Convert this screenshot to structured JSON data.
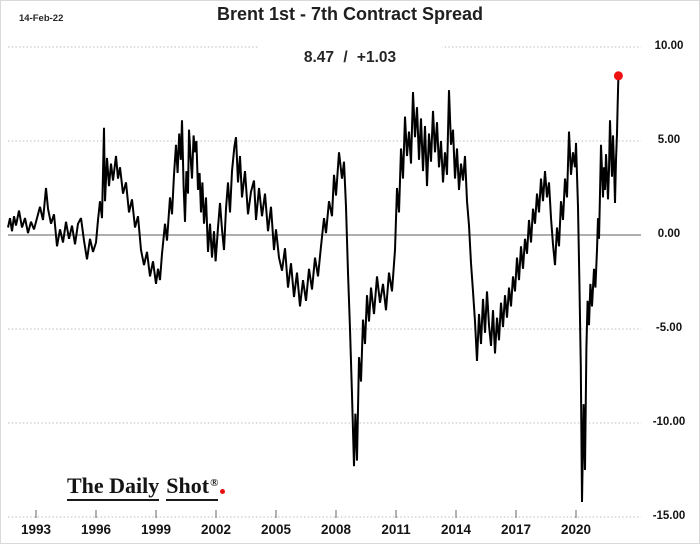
{
  "page": {
    "date_label": "14-Feb-22",
    "title": "Brent 1st - 7th Contract Spread",
    "subtitle": "8.47 / +1.03",
    "logo": {
      "word1": "The Daily",
      "word2": "Shot",
      "registered": "®"
    }
  },
  "chart_data": {
    "type": "line",
    "title": "Brent 1st - 7th Contract Spread",
    "as_of_date": "14-Feb-22",
    "latest_value": 8.47,
    "latest_change": "+1.03",
    "x_domain": [
      1991.6,
      2023.25
    ],
    "ylim": [
      -15,
      10
    ],
    "y_axis_side": "right",
    "grid": "dotted-horizontal",
    "y_ticks": [
      10,
      5,
      0,
      -5,
      -10,
      -15
    ],
    "y_tick_labels": [
      "10.00",
      "5.00",
      "0.00",
      "-5.00",
      "-10.00",
      "-15.00"
    ],
    "x_ticks": [
      1993,
      1996,
      1999,
      2002,
      2005,
      2008,
      2011,
      2014,
      2017,
      2020
    ],
    "x_tick_labels": [
      "1993",
      "1996",
      "1999",
      "2002",
      "2005",
      "2008",
      "2011",
      "2014",
      "2017",
      "2020"
    ],
    "colors": {
      "line": "#000000",
      "marker": "#ee1111",
      "grid": "#bdbdbd",
      "zero_line": "#7f7f7f",
      "tick": "#666666"
    },
    "marker": {
      "x": 2022.12,
      "y": 8.47
    },
    "series": [
      {
        "name": "Brent 1st - 7th contract spread",
        "points": [
          [
            1991.6,
            0.4
          ],
          [
            1991.7,
            0.9
          ],
          [
            1991.8,
            0.2
          ],
          [
            1991.9,
            1.0
          ],
          [
            1992.0,
            0.5
          ],
          [
            1992.15,
            1.3
          ],
          [
            1992.3,
            0.4
          ],
          [
            1992.45,
            0.9
          ],
          [
            1992.6,
            0.1
          ],
          [
            1992.75,
            0.7
          ],
          [
            1992.9,
            0.3
          ],
          [
            1993.05,
            0.9
          ],
          [
            1993.2,
            1.5
          ],
          [
            1993.35,
            0.8
          ],
          [
            1993.5,
            2.5
          ],
          [
            1993.6,
            1.4
          ],
          [
            1993.75,
            0.6
          ],
          [
            1993.9,
            1.1
          ],
          [
            1994.05,
            -0.6
          ],
          [
            1994.2,
            0.3
          ],
          [
            1994.35,
            -0.4
          ],
          [
            1994.5,
            0.7
          ],
          [
            1994.65,
            -0.2
          ],
          [
            1994.8,
            0.5
          ],
          [
            1994.95,
            -0.5
          ],
          [
            1995.1,
            0.6
          ],
          [
            1995.25,
            0.9
          ],
          [
            1995.4,
            -0.3
          ],
          [
            1995.55,
            -1.3
          ],
          [
            1995.7,
            -0.2
          ],
          [
            1995.85,
            -0.9
          ],
          [
            1996.0,
            -0.4
          ],
          [
            1996.1,
            0.8
          ],
          [
            1996.2,
            1.8
          ],
          [
            1996.3,
            0.9
          ],
          [
            1996.4,
            5.7
          ],
          [
            1996.45,
            1.8
          ],
          [
            1996.55,
            4.1
          ],
          [
            1996.65,
            2.6
          ],
          [
            1996.75,
            3.8
          ],
          [
            1996.85,
            2.9
          ],
          [
            1997.0,
            4.2
          ],
          [
            1997.1,
            3.0
          ],
          [
            1997.2,
            3.6
          ],
          [
            1997.35,
            2.2
          ],
          [
            1997.5,
            2.8
          ],
          [
            1997.65,
            1.2
          ],
          [
            1997.8,
            1.9
          ],
          [
            1997.95,
            0.4
          ],
          [
            1998.1,
            1.0
          ],
          [
            1998.25,
            -0.8
          ],
          [
            1998.4,
            -1.6
          ],
          [
            1998.55,
            -0.9
          ],
          [
            1998.7,
            -2.2
          ],
          [
            1998.85,
            -1.4
          ],
          [
            1999.0,
            -2.6
          ],
          [
            1999.1,
            -1.8
          ],
          [
            1999.2,
            -2.4
          ],
          [
            1999.3,
            -1.0
          ],
          [
            1999.45,
            0.6
          ],
          [
            1999.55,
            -0.3
          ],
          [
            1999.7,
            2.0
          ],
          [
            1999.8,
            1.1
          ],
          [
            1999.9,
            3.2
          ],
          [
            2000.0,
            4.8
          ],
          [
            2000.08,
            3.3
          ],
          [
            2000.16,
            5.4
          ],
          [
            2000.24,
            4.0
          ],
          [
            2000.3,
            6.1
          ],
          [
            2000.38,
            2.6
          ],
          [
            2000.45,
            0.7
          ],
          [
            2000.52,
            3.4
          ],
          [
            2000.6,
            2.2
          ],
          [
            2000.65,
            5.6
          ],
          [
            2000.72,
            4.3
          ],
          [
            2000.8,
            3.0
          ],
          [
            2000.88,
            5.3
          ],
          [
            2000.95,
            4.4
          ],
          [
            2001.02,
            5.0
          ],
          [
            2001.1,
            2.4
          ],
          [
            2001.18,
            3.3
          ],
          [
            2001.25,
            1.2
          ],
          [
            2001.32,
            2.8
          ],
          [
            2001.4,
            0.6
          ],
          [
            2001.5,
            2.0
          ],
          [
            2001.6,
            -0.9
          ],
          [
            2001.7,
            0.6
          ],
          [
            2001.8,
            -1.2
          ],
          [
            2001.9,
            0.2
          ],
          [
            2001.98,
            -1.4
          ],
          [
            2002.1,
            0.4
          ],
          [
            2002.2,
            1.7
          ],
          [
            2002.3,
            0.3
          ],
          [
            2002.4,
            -0.8
          ],
          [
            2002.5,
            1.4
          ],
          [
            2002.6,
            2.8
          ],
          [
            2002.7,
            1.2
          ],
          [
            2002.8,
            3.4
          ],
          [
            2002.92,
            4.7
          ],
          [
            2003.0,
            5.2
          ],
          [
            2003.1,
            2.8
          ],
          [
            2003.2,
            4.2
          ],
          [
            2003.3,
            2.0
          ],
          [
            2003.45,
            3.4
          ],
          [
            2003.6,
            1.1
          ],
          [
            2003.75,
            2.3
          ],
          [
            2003.9,
            2.9
          ],
          [
            2004.0,
            0.8
          ],
          [
            2004.15,
            2.5
          ],
          [
            2004.3,
            1.0
          ],
          [
            2004.45,
            2.2
          ],
          [
            2004.6,
            0.2
          ],
          [
            2004.75,
            1.5
          ],
          [
            2004.9,
            -0.8
          ],
          [
            2005.0,
            0.3
          ],
          [
            2005.15,
            -1.2
          ],
          [
            2005.3,
            -1.9
          ],
          [
            2005.45,
            -0.7
          ],
          [
            2005.6,
            -2.8
          ],
          [
            2005.75,
            -1.5
          ],
          [
            2005.9,
            -3.3
          ],
          [
            2006.05,
            -2.0
          ],
          [
            2006.2,
            -3.8
          ],
          [
            2006.35,
            -2.4
          ],
          [
            2006.5,
            -3.5
          ],
          [
            2006.65,
            -1.8
          ],
          [
            2006.8,
            -2.9
          ],
          [
            2006.95,
            -1.2
          ],
          [
            2007.1,
            -2.2
          ],
          [
            2007.25,
            -0.6
          ],
          [
            2007.4,
            0.9
          ],
          [
            2007.5,
            0.1
          ],
          [
            2007.65,
            1.8
          ],
          [
            2007.8,
            1.0
          ],
          [
            2007.9,
            3.2
          ],
          [
            2008.0,
            2.1
          ],
          [
            2008.15,
            4.4
          ],
          [
            2008.3,
            3.0
          ],
          [
            2008.4,
            3.9
          ],
          [
            2008.5,
            1.5
          ],
          [
            2008.6,
            -2.0
          ],
          [
            2008.7,
            -5.0
          ],
          [
            2008.8,
            -8.5
          ],
          [
            2008.9,
            -12.3
          ],
          [
            2008.97,
            -9.5
          ],
          [
            2009.05,
            -12.0
          ],
          [
            2009.15,
            -6.5
          ],
          [
            2009.25,
            -7.8
          ],
          [
            2009.35,
            -4.5
          ],
          [
            2009.45,
            -5.8
          ],
          [
            2009.55,
            -3.2
          ],
          [
            2009.65,
            -4.6
          ],
          [
            2009.75,
            -2.8
          ],
          [
            2009.9,
            -4.2
          ],
          [
            2010.05,
            -2.2
          ],
          [
            2010.2,
            -3.6
          ],
          [
            2010.35,
            -2.6
          ],
          [
            2010.5,
            -4.0
          ],
          [
            2010.65,
            -2.0
          ],
          [
            2010.8,
            -3.0
          ],
          [
            2010.95,
            -0.8
          ],
          [
            2011.05,
            2.5
          ],
          [
            2011.15,
            1.2
          ],
          [
            2011.25,
            4.6
          ],
          [
            2011.35,
            3.0
          ],
          [
            2011.45,
            6.3
          ],
          [
            2011.55,
            4.2
          ],
          [
            2011.65,
            5.5
          ],
          [
            2011.75,
            3.8
          ],
          [
            2011.85,
            7.6
          ],
          [
            2011.95,
            5.2
          ],
          [
            2012.05,
            6.8
          ],
          [
            2012.15,
            4.0
          ],
          [
            2012.25,
            6.2
          ],
          [
            2012.35,
            3.4
          ],
          [
            2012.45,
            5.8
          ],
          [
            2012.55,
            2.6
          ],
          [
            2012.65,
            5.4
          ],
          [
            2012.75,
            3.9
          ],
          [
            2012.85,
            6.6
          ],
          [
            2012.95,
            4.4
          ],
          [
            2013.05,
            6.0
          ],
          [
            2013.15,
            3.6
          ],
          [
            2013.25,
            5.0
          ],
          [
            2013.35,
            2.8
          ],
          [
            2013.45,
            4.4
          ],
          [
            2013.55,
            3.2
          ],
          [
            2013.65,
            7.7
          ],
          [
            2013.75,
            4.8
          ],
          [
            2013.85,
            5.6
          ],
          [
            2013.95,
            3.0
          ],
          [
            2014.05,
            4.6
          ],
          [
            2014.15,
            2.4
          ],
          [
            2014.25,
            3.8
          ],
          [
            2014.35,
            2.9
          ],
          [
            2014.45,
            4.2
          ],
          [
            2014.55,
            1.8
          ],
          [
            2014.65,
            0.5
          ],
          [
            2014.75,
            -1.5
          ],
          [
            2014.85,
            -3.0
          ],
          [
            2014.95,
            -4.6
          ],
          [
            2015.05,
            -6.7
          ],
          [
            2015.15,
            -4.2
          ],
          [
            2015.25,
            -5.8
          ],
          [
            2015.35,
            -3.4
          ],
          [
            2015.45,
            -5.2
          ],
          [
            2015.55,
            -3.0
          ],
          [
            2015.65,
            -4.8
          ],
          [
            2015.75,
            -5.9
          ],
          [
            2015.85,
            -4.0
          ],
          [
            2015.95,
            -6.3
          ],
          [
            2016.05,
            -4.4
          ],
          [
            2016.15,
            -5.6
          ],
          [
            2016.25,
            -3.6
          ],
          [
            2016.35,
            -4.9
          ],
          [
            2016.45,
            -3.2
          ],
          [
            2016.55,
            -4.4
          ],
          [
            2016.65,
            -2.8
          ],
          [
            2016.75,
            -3.8
          ],
          [
            2016.85,
            -2.2
          ],
          [
            2016.95,
            -3.0
          ],
          [
            2017.05,
            -1.2
          ],
          [
            2017.15,
            -2.4
          ],
          [
            2017.25,
            -0.6
          ],
          [
            2017.35,
            -1.8
          ],
          [
            2017.45,
            -0.2
          ],
          [
            2017.55,
            -1.0
          ],
          [
            2017.65,
            0.8
          ],
          [
            2017.75,
            -0.4
          ],
          [
            2017.85,
            1.4
          ],
          [
            2017.95,
            0.6
          ],
          [
            2018.05,
            2.2
          ],
          [
            2018.15,
            1.2
          ],
          [
            2018.25,
            3.0
          ],
          [
            2018.35,
            1.8
          ],
          [
            2018.45,
            3.4
          ],
          [
            2018.55,
            2.0
          ],
          [
            2018.65,
            2.8
          ],
          [
            2018.75,
            0.9
          ],
          [
            2018.85,
            -0.5
          ],
          [
            2018.95,
            -1.6
          ],
          [
            2019.05,
            0.4
          ],
          [
            2019.15,
            -0.6
          ],
          [
            2019.25,
            1.8
          ],
          [
            2019.35,
            0.8
          ],
          [
            2019.45,
            3.0
          ],
          [
            2019.55,
            2.0
          ],
          [
            2019.65,
            5.5
          ],
          [
            2019.75,
            3.2
          ],
          [
            2019.85,
            4.4
          ],
          [
            2019.95,
            3.6
          ],
          [
            2020.0,
            4.9
          ],
          [
            2020.1,
            1.5
          ],
          [
            2020.17,
            -2.5
          ],
          [
            2020.24,
            -7.0
          ],
          [
            2020.3,
            -14.2
          ],
          [
            2020.38,
            -9.0
          ],
          [
            2020.45,
            -12.5
          ],
          [
            2020.52,
            -6.0
          ],
          [
            2020.58,
            -3.5
          ],
          [
            2020.65,
            -4.8
          ],
          [
            2020.72,
            -2.6
          ],
          [
            2020.8,
            -3.8
          ],
          [
            2020.9,
            -1.8
          ],
          [
            2020.97,
            -2.8
          ],
          [
            2021.05,
            -0.8
          ],
          [
            2021.1,
            0.9
          ],
          [
            2021.15,
            -0.2
          ],
          [
            2021.2,
            2.2
          ],
          [
            2021.25,
            4.8
          ],
          [
            2021.3,
            3.4
          ],
          [
            2021.35,
            2.0
          ],
          [
            2021.4,
            3.6
          ],
          [
            2021.45,
            2.4
          ],
          [
            2021.5,
            4.3
          ],
          [
            2021.55,
            3.2
          ],
          [
            2021.6,
            1.9
          ],
          [
            2021.65,
            3.5
          ],
          [
            2021.7,
            6.1
          ],
          [
            2021.75,
            4.4
          ],
          [
            2021.8,
            3.1
          ],
          [
            2021.85,
            5.3
          ],
          [
            2021.9,
            3.8
          ],
          [
            2021.95,
            1.7
          ],
          [
            2022.0,
            4.0
          ],
          [
            2022.05,
            5.4
          ],
          [
            2022.08,
            6.8
          ],
          [
            2022.12,
            8.47
          ]
        ]
      }
    ]
  }
}
